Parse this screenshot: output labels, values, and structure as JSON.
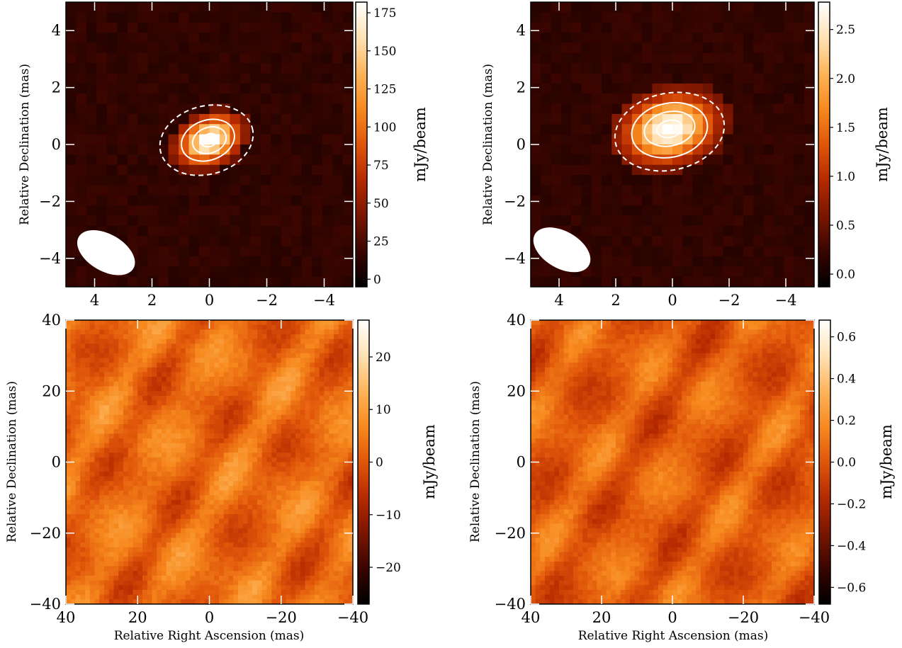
{
  "chart_data": [
    {
      "id": "top-left",
      "type": "heatmap",
      "title": "",
      "xlabel": "",
      "ylabel": "Relative Declination (mas)",
      "xlim": [
        5,
        -5
      ],
      "ylim": [
        -5,
        5
      ],
      "x_ticks": [
        4,
        2,
        0,
        -2,
        -4
      ],
      "y_ticks": [
        -4,
        -2,
        0,
        2,
        4
      ],
      "x_tick_labels": [
        "4",
        "2",
        "0",
        "−2",
        "−4"
      ],
      "y_tick_labels": [
        "−4",
        "−2",
        "0",
        "2",
        "4"
      ],
      "colorbar": {
        "label": "mJy/beam",
        "range": [
          -5,
          182
        ],
        "ticks": [
          0,
          25,
          50,
          75,
          100,
          125,
          150,
          175
        ],
        "tick_labels": [
          "0",
          "25",
          "50",
          "75",
          "100",
          "125",
          "150",
          "175"
        ]
      },
      "source": {
        "center": [
          0.0,
          0.15
        ],
        "peak": 182,
        "sigma_major": 0.55,
        "sigma_minor": 0.38,
        "angle_deg": -25
      },
      "contours": [
        {
          "center": [
            0.1,
            0.15
          ],
          "rx": 1.65,
          "ry": 1.2,
          "angle_deg": -15,
          "style": "dashed"
        },
        {
          "center": [
            0.05,
            0.15
          ],
          "rx": 0.95,
          "ry": 0.7,
          "angle_deg": -20,
          "style": "solid"
        },
        {
          "center": [
            0.0,
            0.15
          ],
          "rx": 0.6,
          "ry": 0.45,
          "angle_deg": -20,
          "style": "solid"
        },
        {
          "center": [
            0.0,
            0.15
          ],
          "rx": 0.3,
          "ry": 0.22,
          "angle_deg": -20,
          "style": "solid"
        }
      ],
      "beam": {
        "center": [
          3.6,
          -3.8
        ],
        "major": 2.2,
        "minor": 1.3,
        "angle_deg": 30
      }
    },
    {
      "id": "top-right",
      "type": "heatmap",
      "title": "",
      "xlabel": "",
      "ylabel": "Relative Declination (mas)",
      "xlim": [
        5,
        -5
      ],
      "ylim": [
        -5,
        5
      ],
      "x_ticks": [
        4,
        2,
        0,
        -2,
        -4
      ],
      "y_ticks": [
        -4,
        -2,
        0,
        2,
        4
      ],
      "x_tick_labels": [
        "4",
        "2",
        "0",
        "−2",
        "−4"
      ],
      "y_tick_labels": [
        "−4",
        "−2",
        "0",
        "2",
        "4"
      ],
      "colorbar": {
        "label": "mJy/beam",
        "range": [
          -0.13,
          2.78
        ],
        "ticks": [
          0.0,
          0.5,
          1.0,
          1.5,
          2.0,
          2.5
        ],
        "tick_labels": [
          "0.0",
          "0.5",
          "1.0",
          "1.5",
          "2.0",
          "2.5"
        ]
      },
      "source": {
        "center": [
          0.1,
          0.55
        ],
        "peak": 2.78,
        "sigma_major": 0.8,
        "sigma_minor": 0.55,
        "angle_deg": -15
      },
      "contours": [
        {
          "center": [
            0.1,
            0.45
          ],
          "rx": 1.95,
          "ry": 1.35,
          "angle_deg": -12,
          "style": "dashed"
        },
        {
          "center": [
            0.1,
            0.5
          ],
          "rx": 1.35,
          "ry": 0.95,
          "angle_deg": -12,
          "style": "solid"
        },
        {
          "center": [
            0.1,
            0.55
          ],
          "rx": 0.9,
          "ry": 0.6,
          "angle_deg": -12,
          "style": "solid"
        },
        {
          "center": [
            0.1,
            0.55
          ],
          "rx": 0.45,
          "ry": 0.3,
          "angle_deg": -12,
          "style": "solid"
        }
      ],
      "beam": {
        "center": [
          3.9,
          -3.7
        ],
        "major": 2.2,
        "minor": 1.3,
        "angle_deg": 30
      }
    },
    {
      "id": "bottom-left",
      "type": "heatmap",
      "title": "",
      "xlabel": "Relative Right Ascension (mas)",
      "ylabel": "Relative Declination (mas)",
      "xlim": [
        40,
        -40
      ],
      "ylim": [
        -40,
        40
      ],
      "x_ticks": [
        40,
        20,
        0,
        -20,
        -40
      ],
      "y_ticks": [
        -40,
        -20,
        0,
        20,
        40
      ],
      "x_tick_labels": [
        "40",
        "20",
        "0",
        "−20",
        "−40"
      ],
      "y_tick_labels": [
        "−40",
        "−20",
        "0",
        "20",
        "40"
      ],
      "colorbar": {
        "label": "mJy/beam",
        "range": [
          -27,
          27
        ],
        "ticks": [
          -20,
          -10,
          0,
          10,
          20
        ],
        "tick_labels": [
          "−20",
          "−10",
          "0",
          "10",
          "20"
        ]
      },
      "noise": {
        "level_mid": 0.55,
        "amplitude": 0.17,
        "seed": 3
      }
    },
    {
      "id": "bottom-right",
      "type": "heatmap",
      "title": "",
      "xlabel": "Relative Right Ascension (mas)",
      "ylabel": "Relative Declination (mas)",
      "xlim": [
        40,
        -40
      ],
      "ylim": [
        -40,
        40
      ],
      "x_ticks": [
        40,
        20,
        0,
        -20,
        -40
      ],
      "y_ticks": [
        -40,
        -20,
        0,
        20,
        40
      ],
      "x_tick_labels": [
        "40",
        "20",
        "0",
        "−20",
        "−40"
      ],
      "y_tick_labels": [
        "−40",
        "−20",
        "0",
        "20",
        "40"
      ],
      "colorbar": {
        "label": "mJy/beam",
        "range": [
          -0.68,
          0.68
        ],
        "ticks": [
          -0.6,
          -0.4,
          -0.2,
          0.0,
          0.2,
          0.4,
          0.6
        ],
        "tick_labels": [
          "−0.6",
          "−0.4",
          "−0.2",
          "0.0",
          "0.2",
          "0.4",
          "0.6"
        ]
      },
      "noise": {
        "level_mid": 0.52,
        "amplitude": 0.16,
        "seed": 7
      }
    }
  ],
  "colors": {
    "cmap": [
      "#000000",
      "#3a0500",
      "#7a1600",
      "#b52a00",
      "#e0560a",
      "#f7891e",
      "#fdb45a",
      "#ffe2b5",
      "#ffffff"
    ],
    "contour": "#ffffff",
    "beam": "#ffffff",
    "axes": "#000000",
    "tick": "#ffffff"
  }
}
